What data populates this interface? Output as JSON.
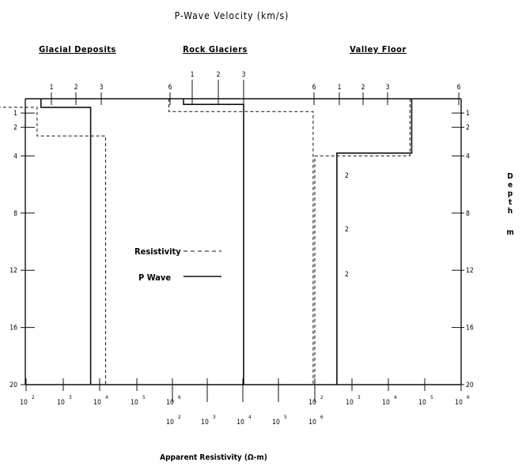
{
  "chart_data": {
    "type": "line",
    "title": "P-Wave Velocity (km/s)",
    "xlabel": "Apparent Resistivity (Ω-m)",
    "ylabel": "Depth m",
    "y_axis_label_letters": [
      "D",
      "e",
      "p",
      "t",
      "h",
      "m"
    ],
    "ylim": [
      0,
      20
    ],
    "y_ticks": [
      1,
      2,
      4,
      8,
      12,
      16,
      20
    ],
    "legend": [
      {
        "label": "Resistivity",
        "style": "dashed"
      },
      {
        "label": "P Wave",
        "style": "solid"
      }
    ],
    "panels": [
      {
        "name": "Glacial Deposits",
        "velocity_ticks": [
          "1",
          "2",
          "3"
        ],
        "resistivity_ticks": [
          "10",
          "10",
          "10",
          "10",
          "10"
        ],
        "resistivity_exponents": [
          "2",
          "3",
          "4",
          "5",
          "6"
        ],
        "series": [
          {
            "name": "P Wave",
            "x_label": "km/s",
            "points": [
              [
                0.6,
                0
              ],
              [
                0.6,
                0.6
              ],
              [
                2.6,
                0.6
              ],
              [
                2.6,
                20
              ]
            ]
          },
          {
            "name": "Resistivity",
            "x_label": "ohm-m",
            "points": [
              [
                10,
                0
              ],
              [
                10,
                0.6
              ],
              [
                200,
                0.6
              ],
              [
                200,
                2.6
              ],
              [
                15000,
                2.6
              ],
              [
                15000,
                20
              ]
            ]
          }
        ]
      },
      {
        "name": "Rock Glaciers",
        "velocity_ticks": [
          "6",
          "1",
          "2",
          "3"
        ],
        "resistivity_ticks": [
          "10",
          "10",
          "10",
          "10",
          "10"
        ],
        "resistivity_exponents": [
          "2",
          "3",
          "4",
          "5",
          "6"
        ],
        "series": [
          {
            "name": "P Wave",
            "x_label": "km/s",
            "points": [
              [
                0.4,
                0
              ],
              [
                0.4,
                0.4
              ],
              [
                3.6,
                0.4
              ],
              [
                3.6,
                20
              ]
            ]
          },
          {
            "name": "Resistivity",
            "x_label": "ohm-m",
            "points": [
              [
                80,
                0
              ],
              [
                80,
                0.9
              ],
              [
                900000,
                0.9
              ],
              [
                900000,
                20
              ]
            ]
          }
        ]
      },
      {
        "name": "Valley Floor",
        "velocity_ticks": [
          "6",
          "1",
          "2",
          "3",
          "6"
        ],
        "resistivity_ticks": [
          "10",
          "10",
          "10",
          "10",
          "10"
        ],
        "resistivity_exponents": [
          "2",
          "3",
          "4",
          "5",
          "6"
        ],
        "annotations": [
          "2",
          "2",
          "2"
        ],
        "series": [
          {
            "name": "P Wave",
            "x_label": "km/s",
            "points": [
              [
                4.0,
                0
              ],
              [
                4.0,
                3.8
              ],
              [
                0.9,
                3.8
              ],
              [
                0.9,
                20
              ]
            ]
          },
          {
            "name": "Resistivity",
            "x_label": "ohm-m",
            "points": [
              [
                40000,
                0
              ],
              [
                40000,
                4.0
              ],
              [
                100,
                4.0
              ],
              [
                100,
                20
              ]
            ]
          }
        ]
      }
    ]
  }
}
